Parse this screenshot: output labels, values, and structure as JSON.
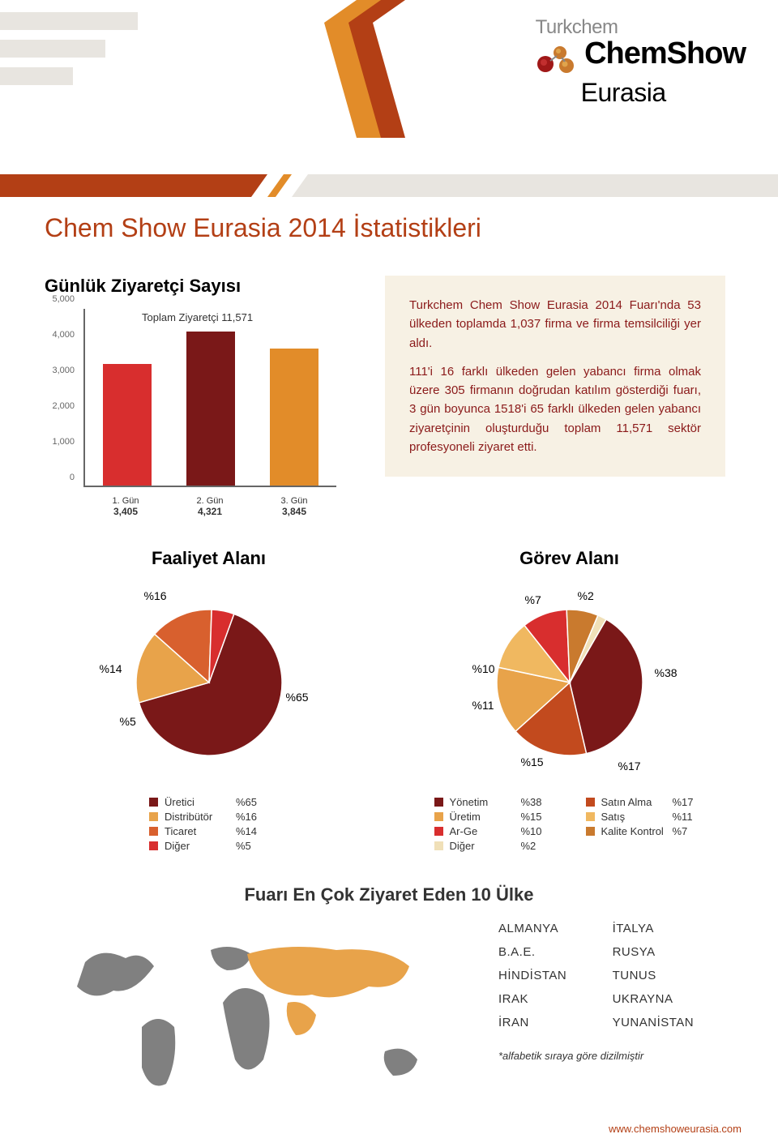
{
  "header": {
    "logo_line1": "Turkchem",
    "logo_line2": "ChemShow",
    "logo_line3": "Eurasia"
  },
  "page_title": "Chem Show Eurasia 2014 İstatistikleri",
  "bar_chart": {
    "title": "Günlük Ziyaretçi Sayısı",
    "type": "bar",
    "total_label": "Toplam Ziyaretçi  11,571",
    "ylim": [
      0,
      5000
    ],
    "yticks": [
      "0",
      "1,000",
      "2,000",
      "3,000",
      "4,000",
      "5,000"
    ],
    "categories": [
      "1. Gün",
      "2. Gün",
      "3. Gün"
    ],
    "values": [
      3405,
      4321,
      3845
    ],
    "value_labels": [
      "3,405",
      "4,321",
      "3,845"
    ],
    "bar_colors": [
      "#d82e2e",
      "#7a1818",
      "#e28c29"
    ],
    "axis_color": "#666666",
    "tick_fontsize": 11,
    "label_fontsize": 11
  },
  "info_box": {
    "background_color": "#f7f1e4",
    "text_color": "#8b1a1a",
    "paragraphs": [
      "Turkchem Chem Show Eurasia 2014 Fuarı'nda 53 ülkeden toplamda 1,037 firma ve firma temsilciliği yer aldı.",
      "111'i 16 farklı ülkeden gelen yabancı firma olmak üzere 305 firmanın doğrudan katılım gösterdiği fuarı, 3 gün boyunca 1518'i 65 farklı ülkeden gelen yabancı ziyaretçinin oluşturduğu toplam 11,571 sektör profesyoneli ziyaret etti."
    ]
  },
  "pie1": {
    "title": "Faaliyet Alanı",
    "type": "pie",
    "slices": [
      {
        "label": "Üretici",
        "pct": 65,
        "color": "#7a1818",
        "legend_color": "#7a1818"
      },
      {
        "label": "Distribütör",
        "pct": 16,
        "color": "#e8a34a",
        "legend_color": "#e8a34a"
      },
      {
        "label": "Ticaret",
        "pct": 14,
        "color": "#d8602e",
        "legend_color": "#d8602e"
      },
      {
        "label": "Diğer",
        "pct": 5,
        "color": "#d82e2e",
        "legend_color": "#d82e2e"
      }
    ]
  },
  "pie2": {
    "title": "Görev Alanı",
    "type": "pie",
    "slices": [
      {
        "label": "Yönetim",
        "pct": 38,
        "color": "#7a1818",
        "legend_color": "#7a1818"
      },
      {
        "label": "Satın Alma",
        "pct": 17,
        "color": "#c24a1e",
        "legend_color": "#c24a1e"
      },
      {
        "label": "Üretim",
        "pct": 15,
        "color": "#e8a34a",
        "legend_color": "#e8a34a"
      },
      {
        "label": "Satış",
        "pct": 11,
        "color": "#f0b860",
        "legend_color": "#f0b860"
      },
      {
        "label": "Ar-Ge",
        "pct": 10,
        "color": "#d82e2e",
        "legend_color": "#d82e2e"
      },
      {
        "label": "Kalite Kontrol",
        "pct": 7,
        "color": "#c97a2e",
        "legend_color": "#c97a2e"
      },
      {
        "label": "Diğer",
        "pct": 2,
        "color": "#f0e0b8",
        "legend_color": "#f0e0b8"
      }
    ]
  },
  "map_section": {
    "title": "Fuarı En Çok Ziyaret Eden 10 Ülke",
    "countries_col1": [
      "ALMANYA",
      "B.A.E.",
      "HİNDİSTAN",
      "IRAK",
      "İRAN"
    ],
    "countries_col2": [
      "İTALYA",
      "RUSYA",
      "TUNUS",
      "UKRAYNA",
      "YUNANİSTAN"
    ],
    "note": "*alfabetik sıraya göre dizilmiştir",
    "map_land_color": "#808080",
    "map_highlight_color": "#e8a34a"
  },
  "footer_url": "www.chemshoweurasia.com",
  "colors": {
    "brand_red": "#b33f15",
    "brand_orange": "#e28c29",
    "stripe_beige": "#e8e5e0"
  }
}
